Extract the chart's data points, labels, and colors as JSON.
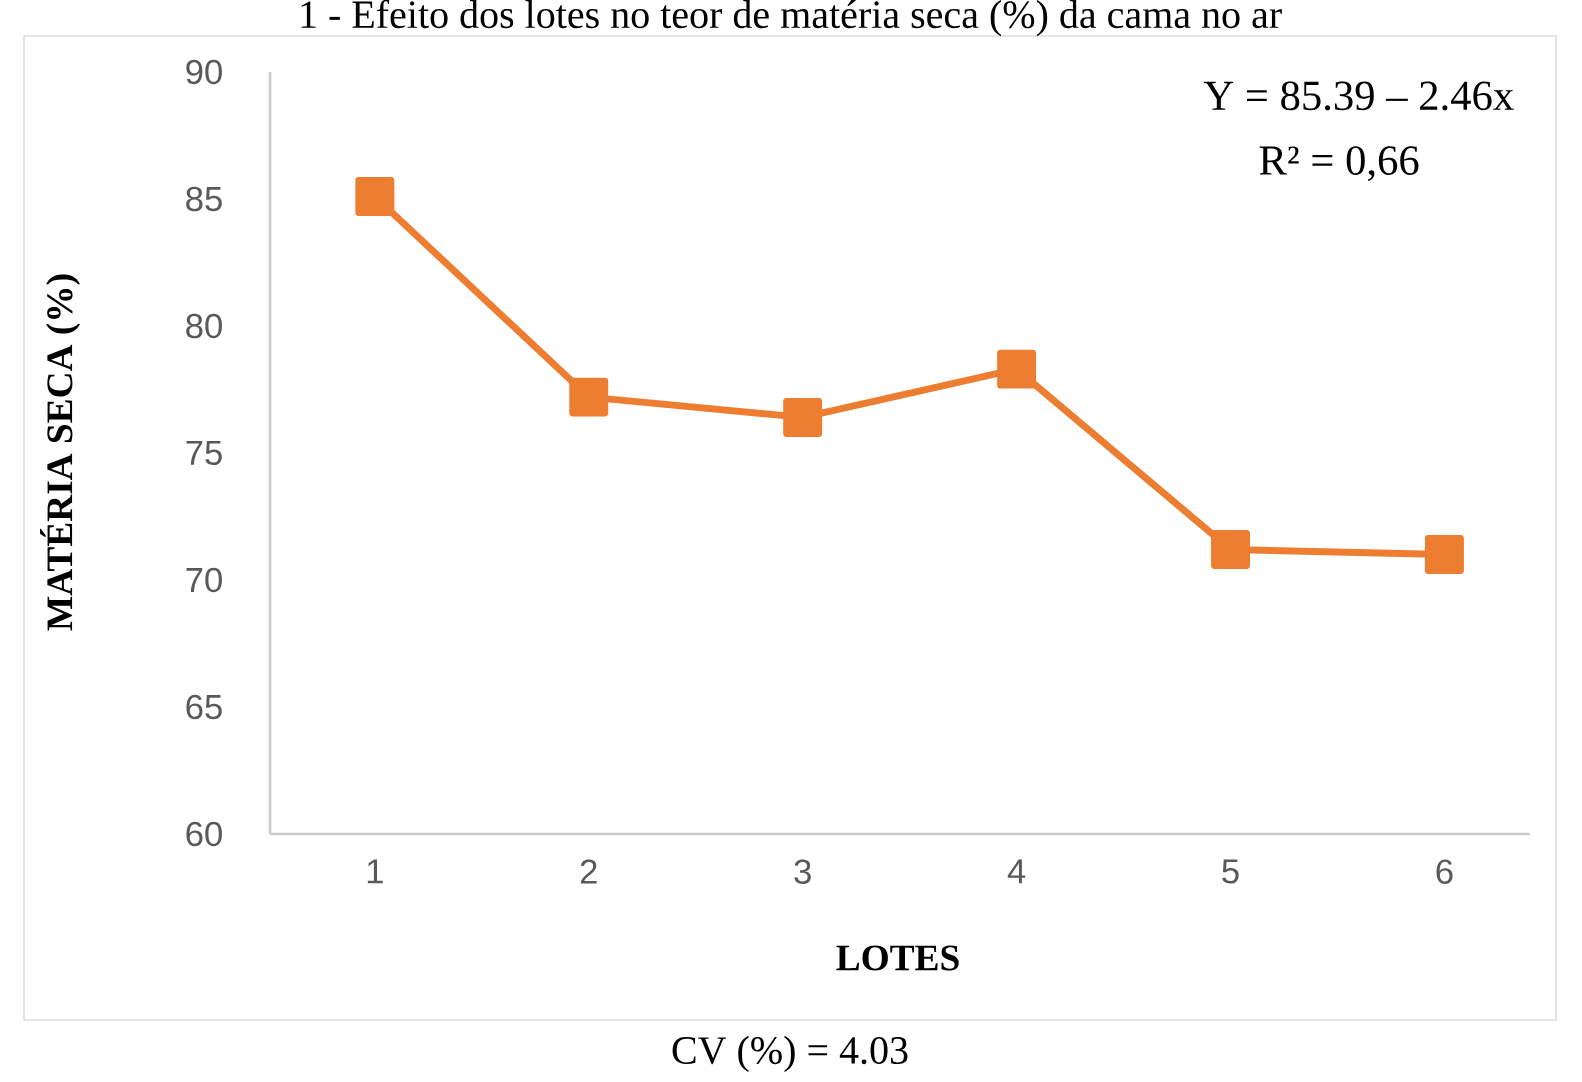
{
  "chart_data": {
    "type": "line",
    "title": "1 - Efeito dos lotes no teor de matéria seca (%) da cama no ar",
    "xlabel": "LOTES",
    "ylabel": "MATÉRIA SECA (%)",
    "categories": [
      "1",
      "2",
      "3",
      "4",
      "5",
      "6"
    ],
    "series": [
      {
        "color": "#ed7d31",
        "values": [
          85.1,
          77.2,
          76.4,
          78.3,
          71.2,
          71.0
        ]
      }
    ],
    "ylim": [
      60,
      90
    ],
    "yticks": [
      60,
      65,
      70,
      75,
      80,
      85,
      90
    ],
    "marker": "square",
    "line_style": "solid",
    "annotations": [
      "Y = 85.39 – 2.46x",
      "R² = 0,66",
      "CV (%) = 4.03"
    ]
  }
}
